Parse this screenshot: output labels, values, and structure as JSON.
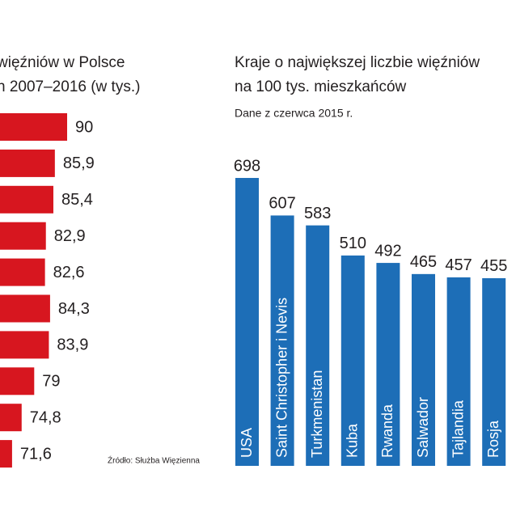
{
  "chart_data": [
    {
      "type": "hbar",
      "title": [
        "więźniów w Polsce",
        "h 2007–2016 (w tys.)"
      ],
      "values": [
        90,
        85.9,
        85.4,
        82.9,
        82.6,
        84.3,
        83.9,
        79,
        74.8,
        71.6
      ],
      "value_labels": [
        "90",
        "85,9",
        "85,4",
        "82,9",
        "82,6",
        "84,3",
        "83,9",
        "79",
        "74,8",
        "71,6"
      ],
      "color": "#d7161f",
      "source": "Źródło: Służba Więzienna"
    },
    {
      "type": "bar",
      "title": [
        "Kraje o największej liczbie więźniów",
        "na 100 tys. mieszkańców"
      ],
      "subtitle": "Dane z czerwca 2015 r.",
      "categories": [
        "USA",
        "Saint Christopher i Nevis",
        "Turkmenistan",
        "Kuba",
        "Rwanda",
        "Salwador",
        "Tajlandia",
        "Rosja"
      ],
      "values": [
        698,
        607,
        583,
        510,
        492,
        465,
        457,
        455
      ],
      "color": "#1d6eb7"
    }
  ]
}
